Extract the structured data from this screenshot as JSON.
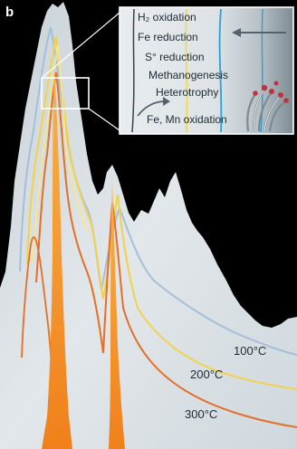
{
  "panel_letter": "b",
  "inset": {
    "processes": [
      "H₂ oxidation",
      "Fe reduction",
      "S° reduction",
      "Methanogenesis",
      "Heterotrophy",
      "Fe, Mn oxidation"
    ]
  },
  "isotherms": [
    {
      "label": "100°C",
      "color": "#9db9d6"
    },
    {
      "label": "200°C",
      "color": "#f0c24a"
    },
    {
      "label": "300°C",
      "color": "#e0702c"
    }
  ],
  "colors": {
    "background": "#000000",
    "rock": "#dfe4e6",
    "fluid_channel": "#f28a1e",
    "isotherm_yellow": "#f7e27a",
    "inset_gradient_dark": "#8b989f"
  }
}
